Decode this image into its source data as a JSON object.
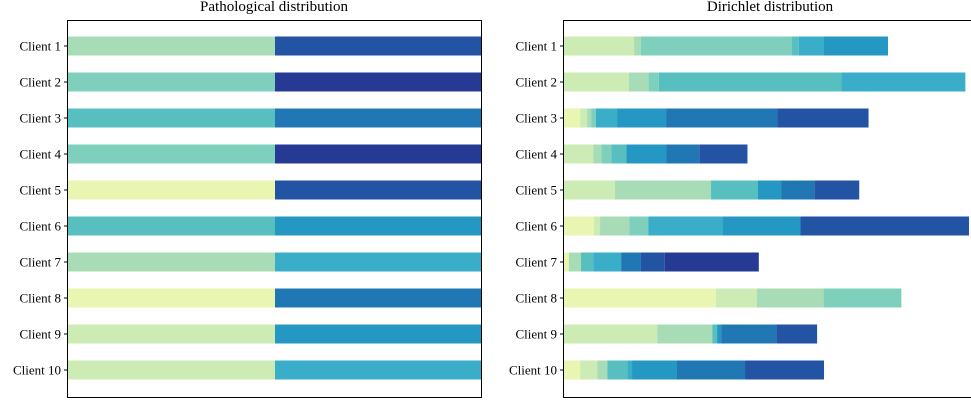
{
  "chart_data": [
    {
      "type": "bar",
      "orientation": "horizontal",
      "stacked": true,
      "title": "Pathological distribution",
      "categories": [
        "Client 1",
        "Client 2",
        "Client 3",
        "Client 4",
        "Client 5",
        "Client 6",
        "Client 7",
        "Client 8",
        "Client 9",
        "Client 10"
      ],
      "segments": [
        [
          {
            "value": 0.5,
            "color": "#a8dcb6"
          },
          {
            "value": 0.5,
            "color": "#2353a3"
          }
        ],
        [
          {
            "value": 0.5,
            "color": "#7ecfbb"
          },
          {
            "value": 0.5,
            "color": "#263a94"
          }
        ],
        [
          {
            "value": 0.5,
            "color": "#58bfc1"
          },
          {
            "value": 0.5,
            "color": "#2177b4"
          }
        ],
        [
          {
            "value": 0.5,
            "color": "#7ecfbb"
          },
          {
            "value": 0.5,
            "color": "#263a94"
          }
        ],
        [
          {
            "value": 0.5,
            "color": "#e8f6b1"
          },
          {
            "value": 0.5,
            "color": "#2353a3"
          }
        ],
        [
          {
            "value": 0.5,
            "color": "#58bfc1"
          },
          {
            "value": 0.5,
            "color": "#2498c3"
          }
        ],
        [
          {
            "value": 0.5,
            "color": "#a8dcb6"
          },
          {
            "value": 0.5,
            "color": "#3aaec8"
          }
        ],
        [
          {
            "value": 0.5,
            "color": "#e8f6b1"
          },
          {
            "value": 0.5,
            "color": "#2177b4"
          }
        ],
        [
          {
            "value": 0.5,
            "color": "#cdebb4"
          },
          {
            "value": 0.5,
            "color": "#2498c3"
          }
        ],
        [
          {
            "value": 0.5,
            "color": "#cdebb4"
          },
          {
            "value": 0.5,
            "color": "#3aaec8"
          }
        ]
      ],
      "xlim": [
        0,
        1
      ],
      "grid": false
    },
    {
      "type": "bar",
      "orientation": "horizontal",
      "stacked": true,
      "title": "Dirichlet distribution",
      "categories": [
        "Client 1",
        "Client 2",
        "Client 3",
        "Client 4",
        "Client 5",
        "Client 6",
        "Client 7",
        "Client 8",
        "Client 9",
        "Client 10"
      ],
      "segments": [
        [
          {
            "value": 0.173,
            "color": "#cdebb4"
          },
          {
            "value": 0.017,
            "color": "#a8dcb6"
          },
          {
            "value": 0.373,
            "color": "#7ecfbb"
          },
          {
            "value": 0.017,
            "color": "#58bfc1"
          },
          {
            "value": 0.062,
            "color": "#3aaec8"
          },
          {
            "value": 0.158,
            "color": "#2498c3"
          }
        ],
        [
          {
            "value": 0.16,
            "color": "#cdebb4"
          },
          {
            "value": 0.049,
            "color": "#a8dcb6"
          },
          {
            "value": 0.025,
            "color": "#7ecfbb"
          },
          {
            "value": 0.451,
            "color": "#58bfc1"
          },
          {
            "value": 0.306,
            "color": "#3aaec8"
          }
        ],
        [
          {
            "value": 0.04,
            "color": "#e8f6b1"
          },
          {
            "value": 0.017,
            "color": "#cdebb4"
          },
          {
            "value": 0.01,
            "color": "#a8dcb6"
          },
          {
            "value": 0.012,
            "color": "#7ecfbb"
          },
          {
            "value": 0.052,
            "color": "#3aaec8"
          },
          {
            "value": 0.121,
            "color": "#2498c3"
          },
          {
            "value": 0.275,
            "color": "#2177b4"
          },
          {
            "value": 0.225,
            "color": "#2353a3"
          }
        ],
        [
          {
            "value": 0.072,
            "color": "#cdebb4"
          },
          {
            "value": 0.02,
            "color": "#a8dcb6"
          },
          {
            "value": 0.025,
            "color": "#7ecfbb"
          },
          {
            "value": 0.037,
            "color": "#58bfc1"
          },
          {
            "value": 0.099,
            "color": "#2498c3"
          },
          {
            "value": 0.081,
            "color": "#2177b4"
          },
          {
            "value": 0.119,
            "color": "#2353a3"
          }
        ],
        [
          {
            "value": 0.126,
            "color": "#cdebb4"
          },
          {
            "value": 0.237,
            "color": "#a8dcb6"
          },
          {
            "value": 0.116,
            "color": "#58bfc1"
          },
          {
            "value": 0.057,
            "color": "#2498c3"
          },
          {
            "value": 0.082,
            "color": "#2177b4"
          },
          {
            "value": 0.111,
            "color": "#2353a3"
          }
        ],
        [
          {
            "value": 0.074,
            "color": "#e8f6b1"
          },
          {
            "value": 0.015,
            "color": "#cdebb4"
          },
          {
            "value": 0.072,
            "color": "#a8dcb6"
          },
          {
            "value": 0.047,
            "color": "#7ecfbb"
          },
          {
            "value": 0.183,
            "color": "#3aaec8"
          },
          {
            "value": 0.193,
            "color": "#2498c3"
          },
          {
            "value": 0.416,
            "color": "#2353a3"
          }
        ],
        [
          {
            "value": 0.012,
            "color": "#e8f6b1"
          },
          {
            "value": 0.03,
            "color": "#a8dcb6"
          },
          {
            "value": 0.03,
            "color": "#58bfc1"
          },
          {
            "value": 0.069,
            "color": "#3aaec8"
          },
          {
            "value": 0.049,
            "color": "#2177b4"
          },
          {
            "value": 0.059,
            "color": "#2353a3"
          },
          {
            "value": 0.232,
            "color": "#263a94"
          }
        ],
        [
          {
            "value": 0.375,
            "color": "#e8f6b1"
          },
          {
            "value": 0.101,
            "color": "#cdebb4"
          },
          {
            "value": 0.165,
            "color": "#a8dcb6"
          },
          {
            "value": 0.192,
            "color": "#7ecfbb"
          }
        ],
        [
          {
            "value": 0.23,
            "color": "#cdebb4"
          },
          {
            "value": 0.136,
            "color": "#a8dcb6"
          },
          {
            "value": 0.012,
            "color": "#58bfc1"
          },
          {
            "value": 0.01,
            "color": "#2498c3"
          },
          {
            "value": 0.136,
            "color": "#2177b4"
          },
          {
            "value": 0.101,
            "color": "#2353a3"
          }
        ],
        [
          {
            "value": 0.04,
            "color": "#e8f6b1"
          },
          {
            "value": 0.042,
            "color": "#cdebb4"
          },
          {
            "value": 0.025,
            "color": "#a8dcb6"
          },
          {
            "value": 0.049,
            "color": "#58bfc1"
          },
          {
            "value": 0.012,
            "color": "#3aaec8"
          },
          {
            "value": 0.111,
            "color": "#2498c3"
          },
          {
            "value": 0.168,
            "color": "#2177b4"
          },
          {
            "value": 0.195,
            "color": "#2353a3"
          }
        ]
      ],
      "xlim": [
        0,
        1
      ],
      "grid": false
    }
  ]
}
